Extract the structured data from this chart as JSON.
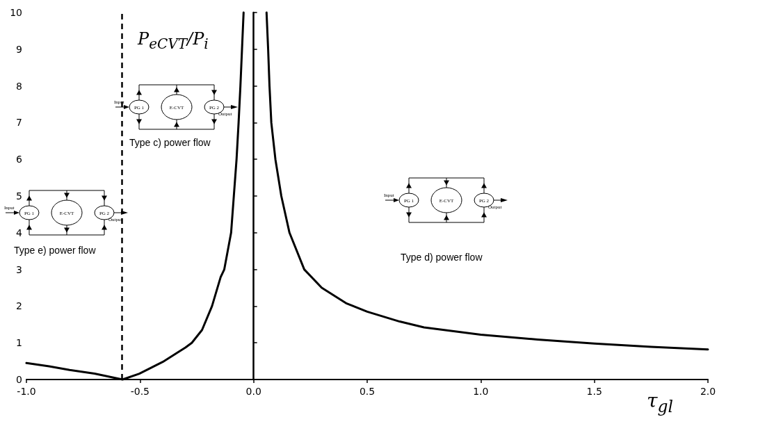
{
  "chart_data": {
    "type": "line",
    "xlabel": "τ$_{gl}$",
    "ylabel": "P$_{eCVT}$/P$_{i}$",
    "annotations": [
      "Type c) power flow",
      "Type e) power flow",
      "Type d) power flow",
      "Input",
      "PG 1",
      "E-CVT",
      "PG 2",
      "Output"
    ],
    "series": [
      {
        "color": "#000000",
        "x": [
          -1,
          -0.9,
          -0.81,
          -0.7,
          -0.577,
          -0.503,
          -0.4,
          -0.3,
          -0.272,
          -0.227,
          -0.183,
          -0.145,
          -0.129,
          -0.099,
          -0.087,
          -0.075,
          -0.066,
          -0.058,
          -0.051,
          -0.044
        ],
        "values": [
          0.45,
          0.36,
          0.26,
          0.16,
          0,
          0.16,
          0.48,
          0.87,
          1,
          1.35,
          2,
          2.79,
          3,
          4,
          5,
          6,
          7,
          8,
          9,
          10
        ]
      },
      {
        "color": "#000000",
        "x": [
          0.057,
          0.064,
          0.07,
          0.078,
          0.096,
          0.122,
          0.158,
          0.223,
          0.3,
          0.41,
          0.5,
          0.643,
          0.75,
          1,
          1.25,
          1.5,
          1.75,
          2
        ],
        "values": [
          10,
          9,
          8,
          7,
          6,
          5,
          4,
          3,
          2.5,
          2.07,
          1.85,
          1.58,
          1.42,
          1.22,
          1.09,
          0.98,
          0.89,
          0.82
        ]
      }
    ],
    "xlim": [
      -1,
      2
    ],
    "xticks": [
      {
        "value": -1,
        "label": "-1.0"
      },
      {
        "value": -0.5,
        "label": "-0.5"
      },
      {
        "value": 0,
        "label": "0.0"
      },
      {
        "value": 0.5,
        "label": "0.5"
      },
      {
        "value": 1,
        "label": "1.0"
      },
      {
        "value": 1.5,
        "label": "1.5"
      },
      {
        "value": 2,
        "label": "2.0"
      }
    ],
    "ylim": [
      0,
      10
    ],
    "yticks": [
      0,
      1,
      2,
      3,
      4,
      5,
      6,
      7,
      8,
      9,
      10
    ],
    "ref_lines": [
      {
        "axis": "x",
        "value": -0.577,
        "color": "#000000",
        "line_style": "dashed"
      }
    ],
    "marker": "none"
  }
}
